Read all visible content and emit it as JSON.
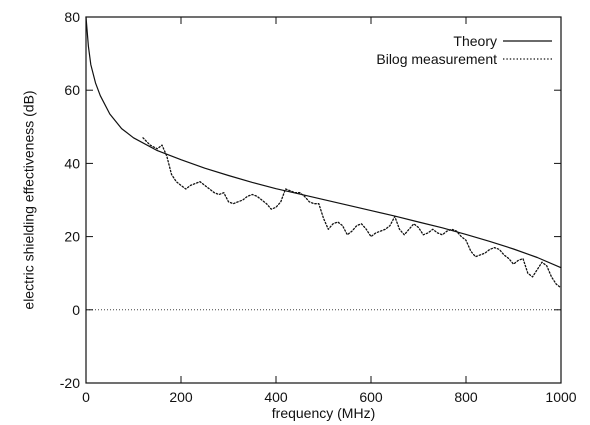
{
  "chart_data": {
    "type": "line",
    "title": "",
    "xlabel": "frequency (MHz)",
    "ylabel": "electric shielding effectiveness (dB)",
    "xlim": [
      0,
      1000
    ],
    "ylim": [
      -20,
      80
    ],
    "x_ticks": [
      0,
      200,
      400,
      600,
      800,
      1000
    ],
    "y_ticks": [
      -20,
      0,
      20,
      40,
      60,
      80
    ],
    "grid": false,
    "legend_position": "top-right",
    "reference_line_y": 0,
    "series": [
      {
        "name": "Theory",
        "style": "solid",
        "color": "#111111",
        "x": [
          0,
          5,
          10,
          20,
          30,
          50,
          75,
          100,
          150,
          200,
          250,
          300,
          350,
          400,
          450,
          500,
          550,
          600,
          650,
          700,
          750,
          800,
          850,
          900,
          950,
          1000
        ],
        "y": [
          80,
          72,
          67,
          62,
          58.5,
          53.5,
          49.5,
          47,
          43.5,
          41,
          38.7,
          36.7,
          34.8,
          33.1,
          31.6,
          30.1,
          28.6,
          27.1,
          25.6,
          24,
          22.4,
          20.6,
          18.7,
          16.6,
          14.3,
          11.5
        ]
      },
      {
        "name": "Bilog measurement",
        "style": "dotted",
        "color": "#111111",
        "x": [
          120,
          135,
          150,
          160,
          170,
          180,
          190,
          200,
          210,
          220,
          230,
          240,
          250,
          260,
          270,
          280,
          290,
          300,
          310,
          320,
          330,
          340,
          350,
          360,
          370,
          380,
          390,
          400,
          410,
          420,
          430,
          440,
          450,
          460,
          470,
          480,
          490,
          500,
          510,
          520,
          530,
          540,
          550,
          560,
          570,
          580,
          590,
          600,
          610,
          620,
          630,
          640,
          650,
          660,
          670,
          680,
          690,
          700,
          710,
          720,
          730,
          740,
          750,
          760,
          770,
          780,
          790,
          800,
          810,
          820,
          830,
          840,
          850,
          860,
          870,
          880,
          890,
          900,
          910,
          920,
          930,
          940,
          950,
          960,
          970,
          980,
          990,
          1000
        ],
        "y": [
          47,
          45,
          44,
          45,
          42,
          37,
          35,
          34,
          33,
          34,
          34.5,
          35,
          34,
          33,
          32,
          31.5,
          32,
          29.5,
          29,
          29.5,
          30,
          31,
          31.5,
          31,
          30,
          29,
          27.5,
          28,
          29.5,
          33,
          32.5,
          32,
          32,
          31,
          29.5,
          29,
          29,
          25,
          22,
          23.5,
          24,
          23,
          20.5,
          21.5,
          23,
          23.5,
          22,
          20,
          21,
          21.5,
          22,
          23,
          25.5,
          22,
          20.5,
          22,
          23.5,
          22.5,
          20.5,
          21,
          22,
          21,
          20.5,
          21.5,
          22,
          21.5,
          20,
          19,
          16,
          14.5,
          15,
          15.5,
          16.5,
          17,
          16.5,
          15,
          14,
          12.5,
          13.5,
          14,
          10,
          9,
          11,
          13,
          12,
          9,
          7,
          6
        ]
      }
    ]
  }
}
